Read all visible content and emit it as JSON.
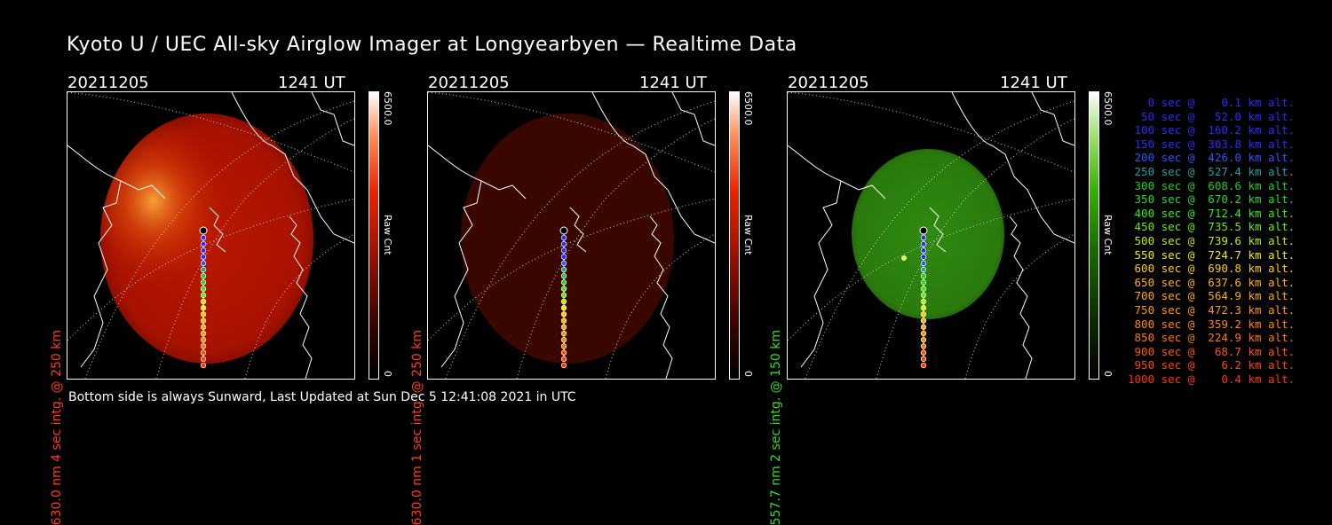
{
  "title": "Kyoto U / UEC All-sky Airglow Imager at Longyearbyen — Realtime Data",
  "footer": "Bottom side is always Sunward, Last Updated at Sun Dec  5 12:41:08 2021 in UTC",
  "panels": [
    {
      "date": "20211205",
      "time": "1241 UT",
      "side_label": "630.0 nm 4 sec intg. @ 250 km",
      "label_color": "#ff3b1a",
      "cbar_max": "6500.0",
      "cbar_min": "0",
      "cbar_unit": "Raw Cnt",
      "cbar_color": "#e62400",
      "image_color": "red-bright"
    },
    {
      "date": "20211205",
      "time": "1241 UT",
      "side_label": "630.0 nm 1 sec intg. @ 250 km",
      "label_color": "#ff3b1a",
      "cbar_max": "6500.0",
      "cbar_min": "0",
      "cbar_unit": "Raw Cnt",
      "cbar_color": "#e62400",
      "image_color": "red-dim"
    },
    {
      "date": "20211205",
      "time": "1241 UT",
      "side_label": "557.7 nm 2 sec intg. @ 150 km",
      "label_color": "#33dd22",
      "cbar_max": "6500.0",
      "cbar_min": "0",
      "cbar_unit": "Raw Cnt",
      "cbar_color": "#33b000",
      "image_color": "green"
    }
  ],
  "legend": [
    {
      "text": "   0 sec @    0.1 km alt.",
      "color": "#2a2aff"
    },
    {
      "text": "  50 sec @   52.0 km alt.",
      "color": "#2a2aff"
    },
    {
      "text": " 100 sec @  160.2 km alt.",
      "color": "#2a2aff"
    },
    {
      "text": " 150 sec @  303.8 km alt.",
      "color": "#2a2aff"
    },
    {
      "text": " 200 sec @  426.0 km alt.",
      "color": "#2a55ff"
    },
    {
      "text": " 250 sec @  527.4 km alt.",
      "color": "#1fa0a0"
    },
    {
      "text": " 300 sec @  608.6 km alt.",
      "color": "#22cc22"
    },
    {
      "text": " 350 sec @  670.2 km alt.",
      "color": "#22dd22"
    },
    {
      "text": " 400 sec @  712.4 km alt.",
      "color": "#33ee11"
    },
    {
      "text": " 450 sec @  735.5 km alt.",
      "color": "#66ee00"
    },
    {
      "text": " 500 sec @  739.6 km alt.",
      "color": "#bbee00"
    },
    {
      "text": " 550 sec @  724.7 km alt.",
      "color": "#eeee00"
    },
    {
      "text": " 600 sec @  690.8 km alt.",
      "color": "#ffcc00"
    },
    {
      "text": " 650 sec @  637.6 km alt.",
      "color": "#ffb300"
    },
    {
      "text": " 700 sec @  564.9 km alt.",
      "color": "#ffaa00"
    },
    {
      "text": " 750 sec @  472.3 km alt.",
      "color": "#ff9900"
    },
    {
      "text": " 800 sec @  359.2 km alt.",
      "color": "#ff8800"
    },
    {
      "text": " 850 sec @  224.9 km alt.",
      "color": "#ff7700"
    },
    {
      "text": " 900 sec @   68.7 km alt.",
      "color": "#ff5500"
    },
    {
      "text": " 950 sec @    6.2 km alt.",
      "color": "#ff4400"
    },
    {
      "text": "1000 sec @    0.4 km alt.",
      "color": "#ff3300"
    }
  ]
}
